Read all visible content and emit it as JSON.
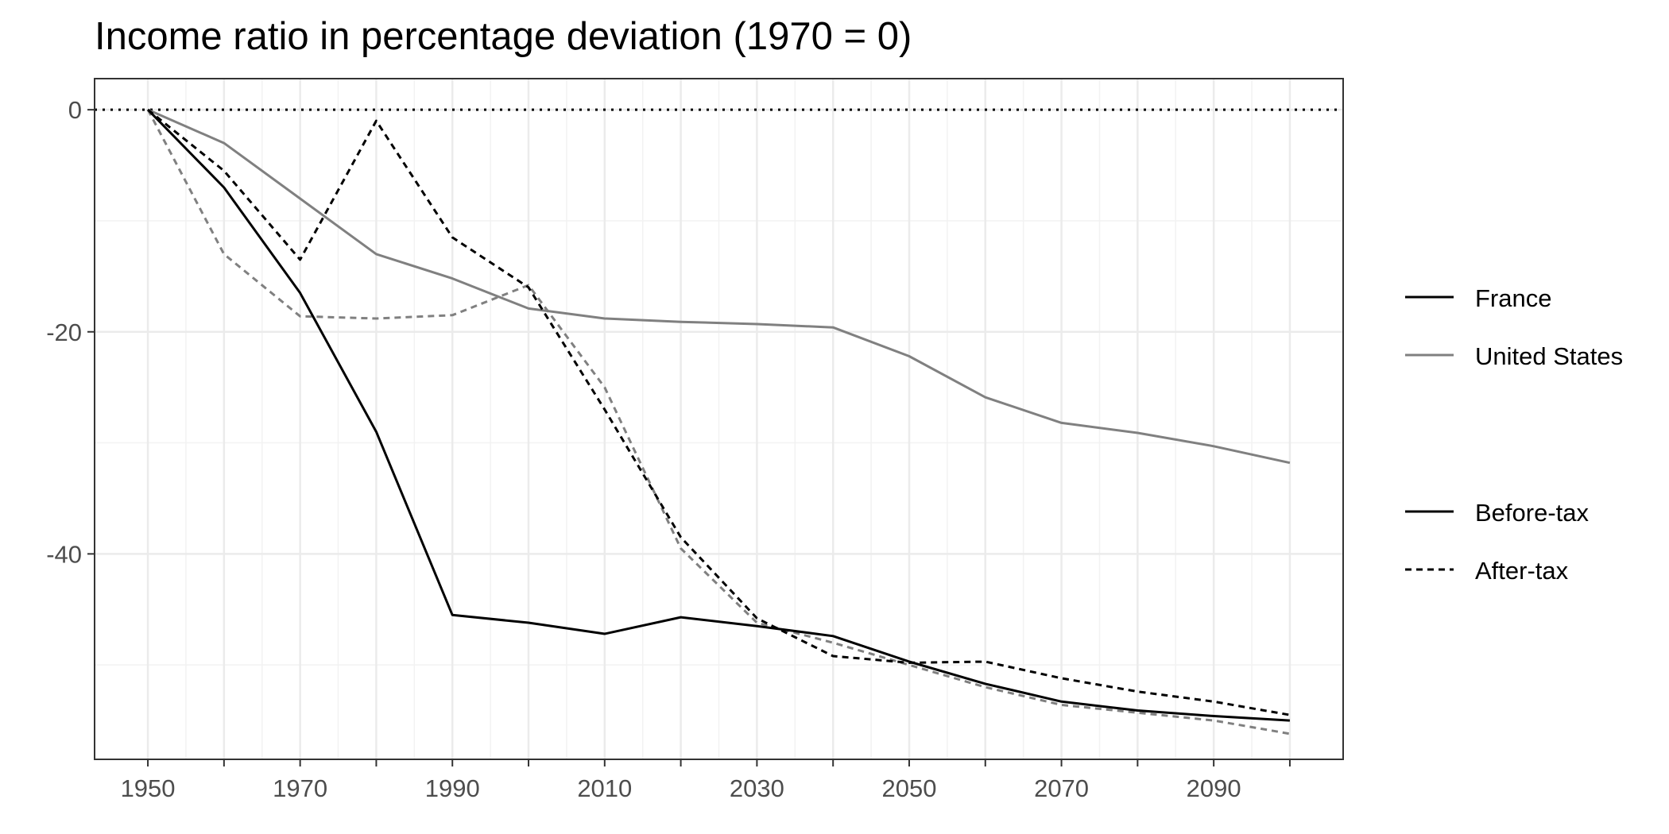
{
  "chart_data": {
    "type": "line",
    "title": "Income ratio in percentage deviation (1970 = 0)",
    "xlabel": "",
    "ylabel": "",
    "x": [
      1950,
      1960,
      1970,
      1980,
      1990,
      2000,
      2010,
      2020,
      2030,
      2040,
      2050,
      2060,
      2070,
      2080,
      2090,
      2100
    ],
    "xlim": [
      1943,
      2107
    ],
    "ylim": [
      -58.5,
      2.8
    ],
    "x_ticks": [
      1950,
      1970,
      1990,
      2010,
      2030,
      2050,
      2070,
      2090
    ],
    "x_tick_labels": [
      "1950",
      "1970",
      "1990",
      "2010",
      "2030",
      "2050",
      "2070",
      "2090"
    ],
    "y_ticks": [
      0,
      -20,
      -40
    ],
    "y_tick_labels": [
      "0",
      "-20",
      "-40"
    ],
    "reference_line": {
      "y": 0,
      "style": "dotted"
    },
    "grid": true,
    "legend_position": "right",
    "legend": {
      "color_group": [
        {
          "label": "France",
          "color": "#000000"
        },
        {
          "label": "United States",
          "color": "#808080"
        }
      ],
      "linetype_group": [
        {
          "label": "Before-tax",
          "dash": "solid"
        },
        {
          "label": "After-tax",
          "dash": "dashed"
        }
      ]
    },
    "series": [
      {
        "country": "France",
        "tax": "Before-tax",
        "color": "#000000",
        "dash": "solid",
        "values": [
          0,
          -7,
          -16.5,
          -29,
          -45.5,
          -46.2,
          -47.2,
          -45.7,
          -46.5,
          -47.4,
          -49.7,
          -51.7,
          -53.3,
          -54.1,
          -54.6,
          -55
        ]
      },
      {
        "country": "France",
        "tax": "After-tax",
        "color": "#000000",
        "dash": "dashed",
        "values": [
          0,
          -5.5,
          -13.5,
          -1,
          -11.5,
          -16,
          -27,
          -38.5,
          -45.8,
          -49.2,
          -49.8,
          -49.7,
          -51.2,
          -52.4,
          -53.3,
          -54.5
        ]
      },
      {
        "country": "United States",
        "tax": "Before-tax",
        "color": "#808080",
        "dash": "solid",
        "values": [
          0,
          -3,
          -8,
          -13,
          -15.2,
          -17.9,
          -18.8,
          -19.1,
          -19.3,
          -19.6,
          -22.2,
          -25.9,
          -28.2,
          -29.1,
          -30.3,
          -31.8
        ]
      },
      {
        "country": "United States",
        "tax": "After-tax",
        "color": "#808080",
        "dash": "dashed",
        "values": [
          0,
          -13,
          -18.6,
          -18.8,
          -18.5,
          -15.8,
          -25,
          -39.5,
          -46.2,
          -48,
          -50,
          -52,
          -53.6,
          -54.3,
          -55,
          -56.2
        ]
      }
    ]
  }
}
